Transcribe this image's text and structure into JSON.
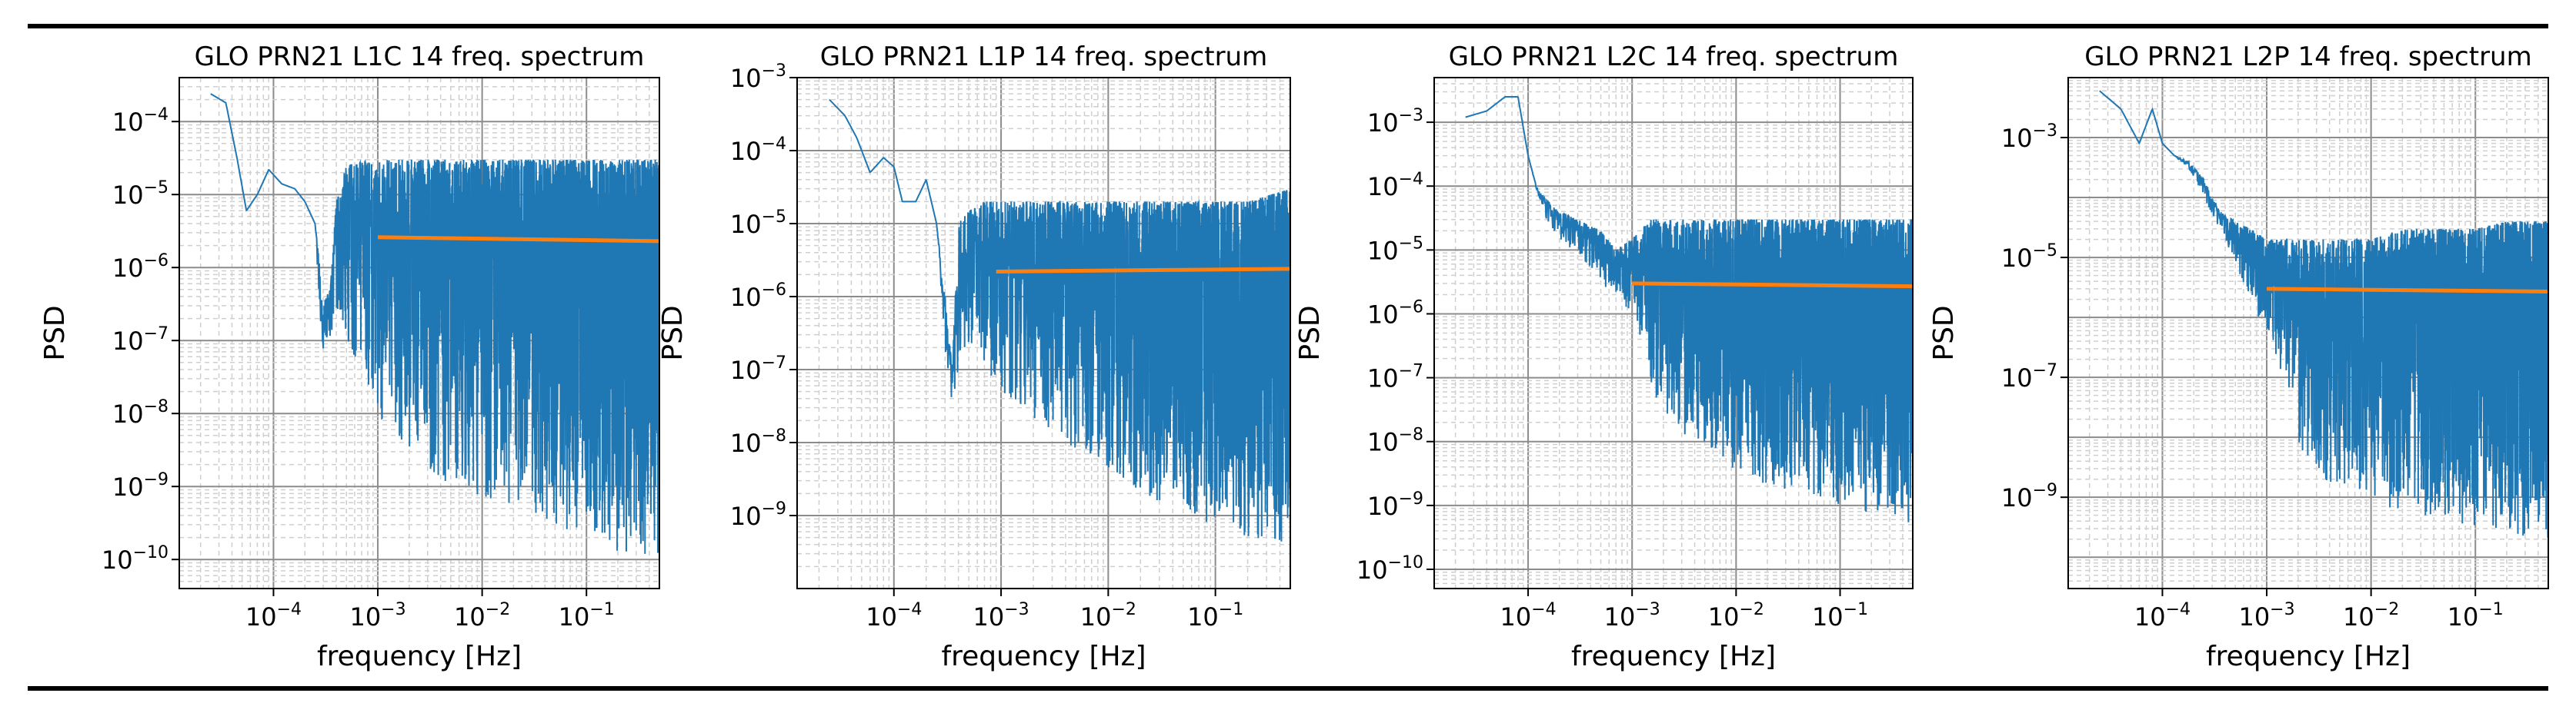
{
  "colors": {
    "spectrum": "#1f77b4",
    "trend": "#ff7f0e",
    "grid_major": "#8c8c8c",
    "grid_minor": "#cfcfcf",
    "rule": "#000000"
  },
  "chart_data": [
    {
      "type": "line",
      "title": "GLO PRN21 L1C 14 freq. spectrum",
      "xlabel": "frequency [Hz]",
      "ylabel": "PSD",
      "xscale": "log",
      "yscale": "log",
      "xlim": [
        1.25e-05,
        0.5
      ],
      "ylim": [
        4e-11,
        0.0004
      ],
      "xtick_exponents": [
        -4,
        -3,
        -2,
        -1
      ],
      "ytick_exponents": [
        -10,
        -9,
        -8,
        -7,
        -6,
        -5,
        -4
      ],
      "grid": true,
      "series": [
        {
          "name": "PSD",
          "color": "#1f77b4",
          "x": [
            2.5e-05,
            3.5e-05,
            4.5e-05,
            5.5e-05,
            7e-05,
            9e-05,
            0.00012,
            0.00016,
            0.0002,
            0.00025,
            0.0003,
            0.00035,
            0.0004,
            0.0005,
            0.0007,
            0.001,
            0.002,
            0.005,
            0.01,
            0.02,
            0.05,
            0.1,
            0.2,
            0.5
          ],
          "upper": [
            0.00024,
            0.00018,
            3e-05,
            6e-06,
            1e-05,
            2.2e-05,
            1.4e-05,
            1.2e-05,
            8e-06,
            4e-06,
            4e-07,
            5e-07,
            8e-06,
            2.5e-05,
            2.8e-05,
            3e-05,
            3e-05,
            3e-05,
            3e-05,
            3e-05,
            3e-05,
            3e-05,
            3e-05,
            3e-05
          ],
          "lower": [
            0.00024,
            0.00018,
            3e-05,
            6e-06,
            1e-05,
            2.2e-05,
            1.4e-05,
            1.2e-05,
            8e-06,
            4e-06,
            3e-08,
            1e-07,
            2e-07,
            1e-07,
            3e-08,
            1e-08,
            3e-09,
            1e-09,
            7e-10,
            5e-10,
            3e-10,
            2e-10,
            1e-10,
            1e-10
          ]
        },
        {
          "name": "trend",
          "color": "#ff7f0e",
          "x": [
            0.001,
            0.5
          ],
          "y": [
            2.6e-06,
            2.3e-06
          ]
        }
      ]
    },
    {
      "type": "line",
      "title": "GLO PRN21 L1P 14 freq. spectrum",
      "xlabel": "frequency [Hz]",
      "ylabel": "PSD",
      "xscale": "log",
      "yscale": "log",
      "xlim": [
        1.25e-05,
        0.5
      ],
      "ylim": [
        1e-10,
        0.001
      ],
      "xtick_exponents": [
        -4,
        -3,
        -2,
        -1
      ],
      "ytick_exponents": [
        -9,
        -8,
        -7,
        -6,
        -5,
        -4,
        -3
      ],
      "grid": true,
      "series": [
        {
          "name": "PSD",
          "color": "#1f77b4",
          "x": [
            2.5e-05,
            3.5e-05,
            4.5e-05,
            6e-05,
            8e-05,
            0.0001,
            0.00012,
            0.00016,
            0.0002,
            0.00025,
            0.0003,
            0.00035,
            0.0004,
            0.0005,
            0.0007,
            0.001,
            0.002,
            0.005,
            0.01,
            0.02,
            0.05,
            0.1,
            0.2,
            0.5
          ],
          "upper": [
            0.0005,
            0.0003,
            0.00015,
            5e-05,
            8e-05,
            6e-05,
            2e-05,
            2e-05,
            4e-05,
            1e-05,
            1e-06,
            1e-07,
            1e-05,
            1.5e-05,
            2e-05,
            2e-05,
            2e-05,
            2e-05,
            2e-05,
            2e-05,
            2e-05,
            2e-05,
            2e-05,
            3e-05
          ],
          "lower": [
            0.0005,
            0.0003,
            0.00015,
            5e-05,
            8e-05,
            6e-05,
            2e-05,
            2e-05,
            4e-05,
            1e-05,
            2e-07,
            3e-08,
            1e-07,
            2e-07,
            1e-07,
            5e-08,
            2e-08,
            7e-09,
            4e-09,
            2e-09,
            1e-09,
            7e-10,
            5e-10,
            3e-10
          ]
        },
        {
          "name": "trend",
          "color": "#ff7f0e",
          "x": [
            0.0009,
            0.5
          ],
          "y": [
            2.2e-06,
            2.4e-06
          ]
        }
      ]
    },
    {
      "type": "line",
      "title": "GLO PRN21 L2C 14 freq. spectrum",
      "xlabel": "frequency [Hz]",
      "ylabel": "PSD",
      "xscale": "log",
      "yscale": "log",
      "xlim": [
        1.25e-05,
        0.5
      ],
      "ylim": [
        5e-11,
        0.005
      ],
      "xtick_exponents": [
        -4,
        -3,
        -2,
        -1
      ],
      "ytick_exponents": [
        -10,
        -9,
        -8,
        -7,
        -6,
        -5,
        -4,
        -3
      ],
      "grid": true,
      "series": [
        {
          "name": "PSD",
          "color": "#1f77b4",
          "x": [
            2.5e-05,
            4e-05,
            6e-05,
            8e-05,
            0.0001,
            0.00012,
            0.00015,
            0.0002,
            0.0003,
            0.0005,
            0.0007,
            0.001,
            0.0012,
            0.0015,
            0.002,
            0.005,
            0.01,
            0.02,
            0.05,
            0.1,
            0.2,
            0.5
          ],
          "upper": [
            0.0012,
            0.0015,
            0.0025,
            0.0025,
            0.0003,
            0.0001,
            6e-05,
            4e-05,
            3e-05,
            2e-05,
            1e-05,
            1.5e-05,
            2e-05,
            3e-05,
            3e-05,
            3e-05,
            3e-05,
            3e-05,
            3e-05,
            3e-05,
            3e-05,
            3e-05
          ],
          "lower": [
            0.0012,
            0.0015,
            0.0025,
            0.0025,
            0.0003,
            8e-05,
            3e-05,
            1.5e-05,
            8e-06,
            3e-06,
            2e-06,
            1e-06,
            4e-07,
            8e-08,
            2e-08,
            8e-09,
            3e-09,
            2e-09,
            1.5e-09,
            1e-09,
            7e-10,
            5e-10
          ]
        },
        {
          "name": "trend",
          "color": "#ff7f0e",
          "x": [
            0.001,
            0.5
          ],
          "y": [
            3e-06,
            2.7e-06
          ]
        }
      ]
    },
    {
      "type": "line",
      "title": "GLO PRN21 L2P 14 freq. spectrum",
      "xlabel": "frequency [Hz]",
      "ylabel": "PSD",
      "xscale": "log",
      "yscale": "log",
      "xlim": [
        1.25e-05,
        0.5
      ],
      "ylim": [
        3e-11,
        0.01
      ],
      "xtick_exponents": [
        -4,
        -3,
        -2,
        -1
      ],
      "ytick_exponents": [
        -9,
        -7,
        -5,
        -3
      ],
      "grid": true,
      "series": [
        {
          "name": "PSD",
          "color": "#1f77b4",
          "x": [
            2.5e-05,
            4e-05,
            6e-05,
            8e-05,
            0.0001,
            0.00013,
            0.00018,
            0.00025,
            0.00035,
            0.0005,
            0.0007,
            0.001,
            0.0015,
            0.002,
            0.003,
            0.005,
            0.01,
            0.02,
            0.05,
            0.1,
            0.2,
            0.5
          ],
          "upper": [
            0.006,
            0.003,
            0.0008,
            0.003,
            0.0008,
            0.0005,
            0.0004,
            0.0002,
            6e-05,
            4e-05,
            3e-05,
            2e-05,
            2e-05,
            2e-05,
            2e-05,
            2e-05,
            2e-05,
            3e-05,
            3e-05,
            3e-05,
            4e-05,
            4e-05
          ],
          "lower": [
            0.006,
            0.003,
            0.0008,
            0.003,
            0.0008,
            0.0005,
            0.0003,
            0.0001,
            3e-05,
            8e-06,
            2e-06,
            5e-07,
            8e-08,
            5e-09,
            2e-09,
            1e-09,
            8e-10,
            6e-10,
            4e-10,
            3e-10,
            2e-10,
            2e-10
          ]
        },
        {
          "name": "trend",
          "color": "#ff7f0e",
          "x": [
            0.001,
            0.5
          ],
          "y": [
            3e-06,
            2.7e-06
          ]
        }
      ]
    }
  ]
}
